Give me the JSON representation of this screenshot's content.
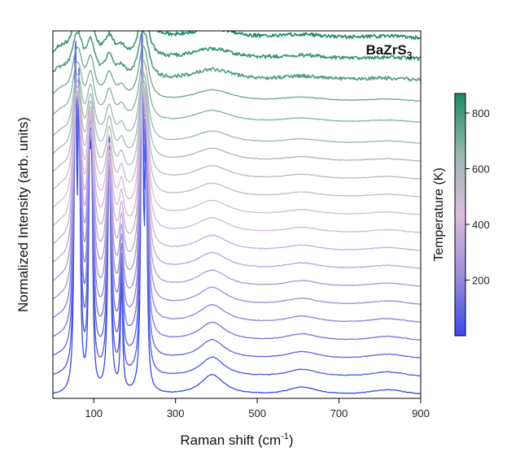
{
  "chart_data": {
    "type": "line",
    "title": "BaZrS",
    "title_subscript": "3",
    "xlabel": "Raman shift (cm",
    "xlabel_superscript": "-1",
    "xlabel_suffix": ")",
    "ylabel": "Normalized Intensity (arb. units)",
    "xlim": [
      0,
      900
    ],
    "x_ticks": [
      100,
      300,
      500,
      700,
      900
    ],
    "y_ticks_labeled": false,
    "grid": false,
    "legend": "none",
    "colorbar": {
      "label": "Temperature (K)",
      "range": [
        0,
        870
      ],
      "ticks": [
        200,
        400,
        600,
        800
      ],
      "colors": [
        "#3a49e8",
        "#9a8ed8",
        "#dcbcdc",
        "#98b8b0",
        "#1c8a62"
      ]
    },
    "peaks_cm-1": [
      55,
      64,
      90,
      95,
      138,
      168,
      218,
      228,
      380,
      400,
      610,
      820
    ],
    "series_count": 20
  }
}
